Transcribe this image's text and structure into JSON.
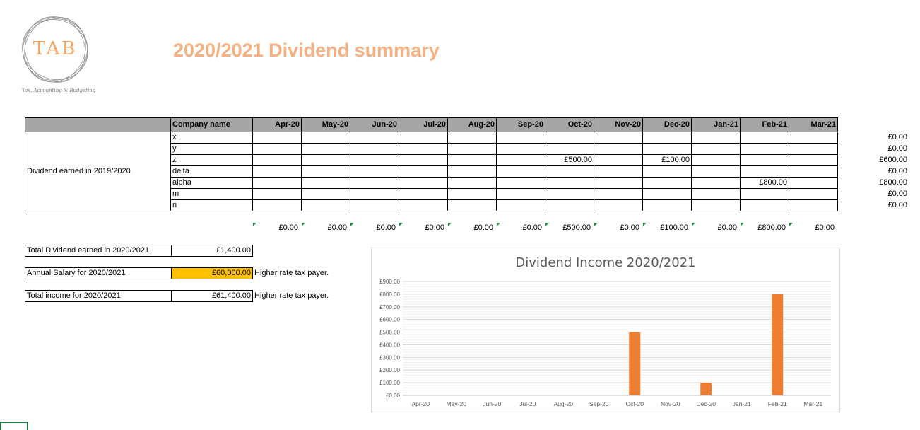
{
  "logo": {
    "text": "TAB",
    "tagline": "Tax, Accounting & Budgeting"
  },
  "title": "2020/2021 Dividend summary",
  "grid": {
    "company_header": "Company name",
    "months": [
      "Apr-20",
      "May-20",
      "Jun-20",
      "Jul-20",
      "Aug-20",
      "Sep-20",
      "Oct-20",
      "Nov-20",
      "Dec-20",
      "Jan-21",
      "Feb-21",
      "Mar-21"
    ],
    "row_label": "Dividend earned in 2019/2020",
    "companies": [
      {
        "name": "x",
        "values": [
          "",
          "",
          "",
          "",
          "",
          "",
          "",
          "",
          "",
          "",
          "",
          ""
        ],
        "total": "£0.00"
      },
      {
        "name": "y",
        "values": [
          "",
          "",
          "",
          "",
          "",
          "",
          "",
          "",
          "",
          "",
          "",
          ""
        ],
        "total": "£0.00"
      },
      {
        "name": "z",
        "values": [
          "",
          "",
          "",
          "",
          "",
          "",
          "£500.00",
          "",
          "£100.00",
          "",
          "",
          ""
        ],
        "total": "£600.00"
      },
      {
        "name": "delta",
        "values": [
          "",
          "",
          "",
          "",
          "",
          "",
          "",
          "",
          "",
          "",
          "",
          ""
        ],
        "total": "£0.00"
      },
      {
        "name": "alpha",
        "values": [
          "",
          "",
          "",
          "",
          "",
          "",
          "",
          "",
          "",
          "",
          "£800.00",
          ""
        ],
        "total": "£800.00"
      },
      {
        "name": "m",
        "values": [
          "",
          "",
          "",
          "",
          "",
          "",
          "",
          "",
          "",
          "",
          "",
          ""
        ],
        "total": "£0.00"
      },
      {
        "name": "n",
        "values": [
          "",
          "",
          "",
          "",
          "",
          "",
          "",
          "",
          "",
          "",
          "",
          ""
        ],
        "total": "£0.00"
      }
    ],
    "month_totals": [
      "£0.00",
      "£0.00",
      "£0.00",
      "£0.00",
      "£0.00",
      "£0.00",
      "£500.00",
      "£0.00",
      "£100.00",
      "£0.00",
      "£800.00",
      "£0.00"
    ]
  },
  "summary": {
    "total_dividend_label": "Total Dividend earned in 2020/2021",
    "total_dividend_value": "£1,400.00",
    "salary_label": "Annual Salary for 2020/2021",
    "salary_value": "£60,000.00",
    "salary_note": "Higher rate tax payer.",
    "income_label": "Total income for 2020/2021",
    "income_value": "£61,400.00",
    "income_note": "Higher rate tax payer."
  },
  "chart_data": {
    "type": "bar",
    "title": "Dividend Income 2020/2021",
    "categories": [
      "Apr-20",
      "May-20",
      "Jun-20",
      "Jul-20",
      "Aug-20",
      "Sep-20",
      "Oct-20",
      "Nov-20",
      "Dec-20",
      "Jan-21",
      "Feb-21",
      "Mar-21"
    ],
    "values": [
      0,
      0,
      0,
      0,
      0,
      0,
      500,
      0,
      100,
      0,
      800,
      0
    ],
    "ylim": [
      0,
      900
    ],
    "yticks": [
      "£0.00",
      "£100.00",
      "£200.00",
      "£300.00",
      "£400.00",
      "£500.00",
      "£600.00",
      "£700.00",
      "£800.00",
      "£900.00"
    ],
    "grid": true,
    "bar_color": "#ed7d31",
    "xlabel": "",
    "ylabel": ""
  },
  "colors": {
    "title": "#f4b183",
    "header_bg": "#a6a6a6",
    "salary_bg": "#ffc000",
    "bar": "#ed7d31"
  }
}
